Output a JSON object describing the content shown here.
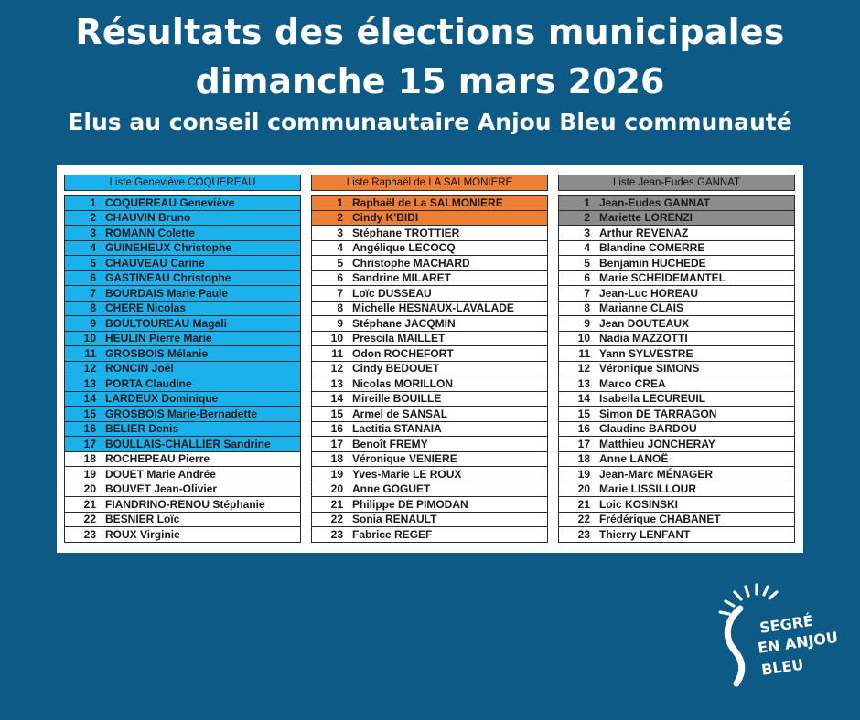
{
  "header": {
    "line1": "Résultats des élections municipales",
    "line2": "dimanche 15 mars 2026",
    "line3": "Elus au conseil communautaire Anjou Bleu communauté"
  },
  "lists": [
    {
      "title": "Liste Geneviève COQUEREAU",
      "color": "#1ab1ec",
      "elected_count": 17,
      "rows": [
        {
          "n": "1",
          "name": "COQUEREAU Geneviève"
        },
        {
          "n": "2",
          "name": "CHAUVIN Bruno"
        },
        {
          "n": "3",
          "name": "ROMANN Colette"
        },
        {
          "n": "4",
          "name": "GUINEHEUX Christophe"
        },
        {
          "n": "5",
          "name": "CHAUVEAU Carine"
        },
        {
          "n": "6",
          "name": "GASTINEAU Christophe"
        },
        {
          "n": "7",
          "name": "BOURDAIS Marie Paule"
        },
        {
          "n": "8",
          "name": "CHERE Nicolas"
        },
        {
          "n": "9",
          "name": "BOULTOUREAU Magali"
        },
        {
          "n": "10",
          "name": "HEULIN Pierre Marie"
        },
        {
          "n": "11",
          "name": "GROSBOIS Mélanie"
        },
        {
          "n": "12",
          "name": "RONCIN Joël"
        },
        {
          "n": "13",
          "name": "PORTA Claudine"
        },
        {
          "n": "14",
          "name": "LARDEUX Dominique"
        },
        {
          "n": "15",
          "name": "GROSBOIS Marie-Bernadette"
        },
        {
          "n": "16",
          "name": "BELIER Denis"
        },
        {
          "n": "17",
          "name": "BOULLAIS-CHALLIER Sandrine"
        },
        {
          "n": "18",
          "name": "ROCHEPEAU Pierre"
        },
        {
          "n": "19",
          "name": "DOUET Marie Andrée"
        },
        {
          "n": "20",
          "name": "BOUVET Jean-Olivier"
        },
        {
          "n": "21",
          "name": "FIANDRINO-RENOU Stéphanie"
        },
        {
          "n": "22",
          "name": "BESNIER Loïc"
        },
        {
          "n": "23",
          "name": "ROUX Virginie"
        }
      ]
    },
    {
      "title": "Liste Raphaël de LA SALMONIERE",
      "color": "#ef7f34",
      "elected_count": 2,
      "rows": [
        {
          "n": "1",
          "name": "Raphaël de La SALMONIERE"
        },
        {
          "n": "2",
          "name": "Cindy K'BIDI"
        },
        {
          "n": "3",
          "name": "Stéphane TROTTIER"
        },
        {
          "n": "4",
          "name": "Angélique LECOCQ"
        },
        {
          "n": "5",
          "name": "Christophe MACHARD"
        },
        {
          "n": "6",
          "name": "Sandrine MILARET"
        },
        {
          "n": "7",
          "name": "Loïc DUSSEAU"
        },
        {
          "n": "8",
          "name": "Michelle HESNAUX-LAVALADE"
        },
        {
          "n": "9",
          "name": "Stéphane JACQMIN"
        },
        {
          "n": "10",
          "name": "Prescila MAILLET"
        },
        {
          "n": "11",
          "name": "Odon ROCHEFORT"
        },
        {
          "n": "12",
          "name": "Cindy BEDOUET"
        },
        {
          "n": "13",
          "name": "Nicolas MORILLON"
        },
        {
          "n": "14",
          "name": "Mireille BOUILLE"
        },
        {
          "n": "15",
          "name": "Armel de SANSAL"
        },
        {
          "n": "16",
          "name": "Laetitia STANAIA"
        },
        {
          "n": "17",
          "name": "Benoît FREMY"
        },
        {
          "n": "18",
          "name": "Véronique VENIERE"
        },
        {
          "n": "19",
          "name": "Yves-Marie LE ROUX"
        },
        {
          "n": "20",
          "name": "Anne GOGUET"
        },
        {
          "n": "21",
          "name": "Philippe DE PIMODAN"
        },
        {
          "n": "22",
          "name": "Sonia RENAULT"
        },
        {
          "n": "23",
          "name": "Fabrice REGEF"
        }
      ]
    },
    {
      "title": "Liste Jean-Eudes GANNAT",
      "color": "#8c8c8c",
      "elected_count": 2,
      "rows": [
        {
          "n": "1",
          "name": "Jean-Eudes GANNAT"
        },
        {
          "n": "2",
          "name": "Mariette LORENZI"
        },
        {
          "n": "3",
          "name": "Arthur REVENAZ"
        },
        {
          "n": "4",
          "name": "Blandine COMERRE"
        },
        {
          "n": "5",
          "name": "Benjamin HUCHEDE"
        },
        {
          "n": "6",
          "name": "Marie SCHEIDEMANTEL"
        },
        {
          "n": "7",
          "name": "Jean-Luc HOREAU"
        },
        {
          "n": "8",
          "name": "Marianne CLAIS"
        },
        {
          "n": "9",
          "name": "Jean DOUTEAUX"
        },
        {
          "n": "10",
          "name": "Nadia MAZZOTTI"
        },
        {
          "n": "11",
          "name": "Yann SYLVESTRE"
        },
        {
          "n": "12",
          "name": "Véronique SIMONS"
        },
        {
          "n": "13",
          "name": "Marco CREA"
        },
        {
          "n": "14",
          "name": "Isabella LECUREUIL"
        },
        {
          "n": "15",
          "name": "Simon DE TARRAGON"
        },
        {
          "n": "16",
          "name": "Claudine BARDOU"
        },
        {
          "n": "17",
          "name": "Matthieu JONCHERAY"
        },
        {
          "n": "18",
          "name": "Anne LANOË"
        },
        {
          "n": "19",
          "name": "Jean-Marc MÉNAGER"
        },
        {
          "n": "20",
          "name": "Marie LISSILLOUR"
        },
        {
          "n": "21",
          "name": "Loic KOSINSKI"
        },
        {
          "n": "22",
          "name": "Frédérique CHABANET"
        },
        {
          "n": "23",
          "name": "Thierry LENFANT"
        }
      ]
    }
  ],
  "logo": {
    "line1": "SEGRÉ",
    "line2": "EN ANJOU",
    "line3": "BLEU",
    "icon": "sun-logo-icon"
  },
  "colors": {
    "background": "#0e5a86",
    "text": "#ffffff"
  }
}
